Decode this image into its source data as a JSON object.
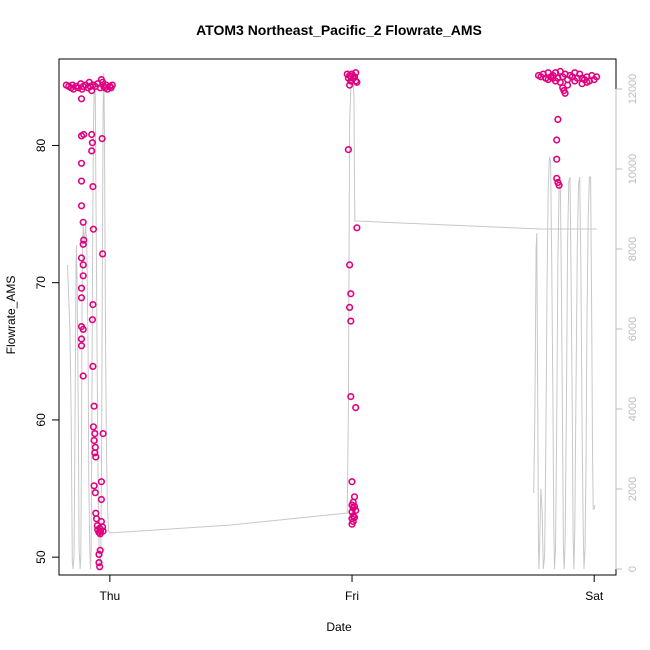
{
  "chart_data": {
    "type": "scatter",
    "title": "ATOM3 Northeast_Pacific_2 Flowrate_AMS",
    "xlabel": "Date",
    "ylabel": "Flowrate_AMS",
    "x_ticks": [
      {
        "label": "Thu",
        "value": 0.0
      },
      {
        "label": "Fri",
        "value": 1.0
      },
      {
        "label": "Sat",
        "value": 2.0
      }
    ],
    "xlim": [
      -0.21,
      2.09
    ],
    "ylim": [
      48.7,
      86.3
    ],
    "y_ticks": [
      50,
      60,
      70,
      80
    ],
    "y2lim": [
      -150,
      12750
    ],
    "y2_ticks": [
      0,
      2000,
      4000,
      6000,
      8000,
      10000,
      12000
    ],
    "colors": {
      "points": "#e0007f",
      "line": "#c8c8c8",
      "axis": "#000000",
      "right_axis": "#bdbdbd"
    },
    "grid": false,
    "series": [
      {
        "kind": "points",
        "axis": "left",
        "points": [
          [
            -0.18,
            84.4
          ],
          [
            -0.17,
            84.3
          ],
          [
            -0.16,
            84.2
          ],
          [
            -0.155,
            84.4
          ],
          [
            -0.15,
            84.1
          ],
          [
            -0.14,
            84.3
          ],
          [
            -0.13,
            84.2
          ],
          [
            -0.12,
            84.5
          ],
          [
            -0.115,
            84.1
          ],
          [
            -0.11,
            84.3
          ],
          [
            -0.1,
            84.4
          ],
          [
            -0.09,
            84.2
          ],
          [
            -0.085,
            84.6
          ],
          [
            -0.08,
            84.3
          ],
          [
            -0.075,
            84.0
          ],
          [
            -0.07,
            84.4
          ],
          [
            -0.06,
            84.3
          ],
          [
            -0.05,
            84.5
          ],
          [
            -0.04,
            84.2
          ],
          [
            -0.03,
            84.6
          ],
          [
            -0.025,
            84.3
          ],
          [
            -0.02,
            84.2
          ],
          [
            -0.015,
            84.4
          ],
          [
            -0.01,
            84.1
          ],
          [
            0.0,
            84.3
          ],
          [
            0.005,
            84.2
          ],
          [
            0.01,
            84.4
          ],
          [
            -0.035,
            84.8
          ],
          [
            -0.117,
            83.4
          ],
          [
            -0.117,
            80.7
          ],
          [
            -0.108,
            80.8
          ],
          [
            -0.117,
            78.7
          ],
          [
            -0.117,
            77.4
          ],
          [
            -0.117,
            75.6
          ],
          [
            -0.11,
            74.4
          ],
          [
            -0.108,
            73.1
          ],
          [
            -0.11,
            72.8
          ],
          [
            -0.117,
            71.8
          ],
          [
            -0.11,
            71.3
          ],
          [
            -0.11,
            70.5
          ],
          [
            -0.117,
            69.6
          ],
          [
            -0.117,
            68.9
          ],
          [
            -0.117,
            66.8
          ],
          [
            -0.11,
            66.6
          ],
          [
            -0.117,
            65.9
          ],
          [
            -0.117,
            65.4
          ],
          [
            -0.11,
            63.2
          ],
          [
            -0.075,
            80.8
          ],
          [
            -0.072,
            80.2
          ],
          [
            -0.075,
            79.6
          ],
          [
            -0.07,
            77.0
          ],
          [
            -0.068,
            73.9
          ],
          [
            -0.07,
            68.4
          ],
          [
            -0.072,
            67.3
          ],
          [
            -0.07,
            63.9
          ],
          [
            -0.065,
            61.0
          ],
          [
            -0.068,
            59.5
          ],
          [
            -0.062,
            59.0
          ],
          [
            -0.065,
            58.5
          ],
          [
            -0.06,
            58.0
          ],
          [
            -0.062,
            57.6
          ],
          [
            -0.058,
            57.3
          ],
          [
            -0.065,
            55.2
          ],
          [
            -0.06,
            54.7
          ],
          [
            -0.058,
            53.2
          ],
          [
            -0.055,
            52.8
          ],
          [
            -0.052,
            52.3
          ],
          [
            -0.05,
            52.0
          ],
          [
            -0.045,
            51.8
          ],
          [
            -0.042,
            52.1
          ],
          [
            -0.04,
            51.7
          ],
          [
            -0.038,
            51.9
          ],
          [
            -0.035,
            52.6
          ],
          [
            -0.035,
            55.5
          ],
          [
            -0.03,
            52.2
          ],
          [
            -0.028,
            51.9
          ],
          [
            -0.04,
            50.5
          ],
          [
            -0.045,
            50.2
          ],
          [
            -0.045,
            49.6
          ],
          [
            -0.042,
            49.3
          ],
          [
            -0.035,
            54.2
          ],
          [
            -0.028,
            59.0
          ],
          [
            -0.03,
            72.1
          ],
          [
            -0.032,
            80.5
          ],
          [
            0.98,
            85.2
          ],
          [
            0.985,
            84.9
          ],
          [
            0.99,
            85.1
          ],
          [
            0.995,
            84.7
          ],
          [
            1.0,
            85.2
          ],
          [
            1.005,
            84.9
          ],
          [
            1.01,
            85.0
          ],
          [
            1.015,
            84.7
          ],
          [
            1.02,
            84.6
          ],
          [
            1.015,
            85.3
          ],
          [
            0.99,
            84.4
          ],
          [
            0.995,
            85.0
          ],
          [
            0.985,
            79.7
          ],
          [
            1.02,
            74.0
          ],
          [
            0.99,
            71.3
          ],
          [
            0.995,
            69.2
          ],
          [
            0.99,
            68.2
          ],
          [
            0.995,
            67.2
          ],
          [
            0.995,
            61.7
          ],
          [
            1.015,
            60.9
          ],
          [
            1.0,
            55.5
          ],
          [
            1.01,
            54.4
          ],
          [
            1.005,
            54.0
          ],
          [
            1.0,
            53.8
          ],
          [
            1.005,
            53.6
          ],
          [
            1.0,
            53.3
          ],
          [
            1.005,
            53.0
          ],
          [
            1.0,
            52.8
          ],
          [
            1.005,
            52.6
          ],
          [
            1.0,
            52.4
          ],
          [
            1.01,
            52.9
          ],
          [
            1.015,
            53.4
          ],
          [
            1.01,
            53.7
          ],
          [
            1.77,
            85.1
          ],
          [
            1.78,
            85.0
          ],
          [
            1.79,
            85.2
          ],
          [
            1.8,
            84.9
          ],
          [
            1.81,
            85.3
          ],
          [
            1.82,
            85.0
          ],
          [
            1.83,
            85.1
          ],
          [
            1.84,
            85.3
          ],
          [
            1.85,
            84.9
          ],
          [
            1.86,
            85.4
          ],
          [
            1.87,
            85.0
          ],
          [
            1.88,
            85.2
          ],
          [
            1.89,
            84.8
          ],
          [
            1.9,
            85.1
          ],
          [
            1.91,
            85.0
          ],
          [
            1.92,
            85.3
          ],
          [
            1.93,
            84.9
          ],
          [
            1.94,
            85.2
          ],
          [
            1.95,
            84.9
          ],
          [
            1.96,
            84.8
          ],
          [
            1.97,
            85.0
          ],
          [
            1.98,
            84.7
          ],
          [
            1.99,
            85.1
          ],
          [
            2.0,
            84.8
          ],
          [
            2.01,
            85.0
          ],
          [
            1.86,
            84.6
          ],
          [
            1.87,
            84.2
          ],
          [
            1.875,
            84.0
          ],
          [
            1.88,
            83.8
          ],
          [
            1.89,
            84.4
          ],
          [
            1.81,
            84.8
          ],
          [
            1.83,
            84.9
          ],
          [
            1.84,
            84.7
          ],
          [
            1.92,
            84.7
          ],
          [
            1.95,
            84.5
          ],
          [
            1.97,
            84.6
          ],
          [
            1.8,
            84.9
          ],
          [
            1.85,
            81.9
          ],
          [
            1.845,
            80.4
          ],
          [
            1.845,
            79.0
          ],
          [
            1.845,
            77.6
          ],
          [
            1.85,
            77.3
          ],
          [
            1.855,
            77.1
          ]
        ]
      },
      {
        "kind": "line",
        "axis": "right",
        "points": [
          [
            -0.175,
            7600
          ],
          [
            -0.17,
            6800
          ],
          [
            -0.165,
            6000
          ],
          [
            -0.16,
            4000
          ],
          [
            -0.155,
            200
          ],
          [
            -0.152,
            0
          ],
          [
            -0.148,
            300
          ],
          [
            -0.145,
            2500
          ],
          [
            -0.142,
            5500
          ],
          [
            -0.14,
            7600
          ],
          [
            -0.138,
            8100
          ],
          [
            -0.135,
            7000
          ],
          [
            -0.13,
            3500
          ],
          [
            -0.127,
            500
          ],
          [
            -0.123,
            0
          ],
          [
            -0.12,
            300
          ],
          [
            -0.117,
            2800
          ],
          [
            -0.115,
            6500
          ],
          [
            -0.112,
            8200
          ],
          [
            -0.11,
            8600
          ],
          [
            -0.108,
            8300
          ],
          [
            -0.105,
            8200
          ],
          [
            -0.1,
            8600
          ],
          [
            -0.095,
            8100
          ],
          [
            -0.09,
            5400
          ],
          [
            -0.087,
            2200
          ],
          [
            -0.083,
            500
          ],
          [
            -0.08,
            0
          ],
          [
            -0.077,
            500
          ],
          [
            -0.075,
            3000
          ],
          [
            -0.072,
            6800
          ],
          [
            -0.07,
            9200
          ],
          [
            -0.067,
            11200
          ],
          [
            -0.064,
            12200
          ],
          [
            -0.06,
            11800
          ],
          [
            -0.058,
            9800
          ],
          [
            -0.055,
            7400
          ],
          [
            -0.05,
            3200
          ],
          [
            -0.047,
            1200
          ],
          [
            -0.043,
            200
          ],
          [
            -0.04,
            0
          ],
          [
            -0.037,
            500
          ],
          [
            -0.034,
            3000
          ],
          [
            -0.031,
            7200
          ],
          [
            -0.028,
            11500
          ],
          [
            -0.025,
            12400
          ],
          [
            -0.022,
            10800
          ],
          [
            -0.02,
            8200
          ],
          [
            -0.017,
            5200
          ],
          [
            -0.014,
            3000
          ],
          [
            -0.011,
            1800
          ],
          [
            -0.008,
            1300
          ],
          [
            -0.005,
            950
          ],
          [
            0.0,
            900
          ],
          [
            0.5,
            1100
          ],
          [
            0.98,
            1400
          ],
          [
            0.985,
            4000
          ],
          [
            0.988,
            8200
          ],
          [
            0.99,
            11200
          ],
          [
            0.995,
            12000
          ],
          [
            1.0,
            12400
          ],
          [
            1.005,
            12200
          ],
          [
            1.008,
            11800
          ],
          [
            1.01,
            9500
          ],
          [
            1.012,
            8700
          ],
          [
            1.018,
            8700
          ],
          [
            1.78,
            8500
          ],
          [
            2.01,
            8500
          ]
        ]
      },
      {
        "kind": "line",
        "axis": "right",
        "points": [
          [
            1.75,
            1900
          ],
          [
            1.755,
            4000
          ],
          [
            1.76,
            8000
          ],
          [
            1.763,
            8400
          ],
          [
            1.765,
            6000
          ],
          [
            1.768,
            3000
          ],
          [
            1.77,
            500
          ],
          [
            1.772,
            0
          ],
          [
            1.776,
            1000
          ],
          [
            1.78,
            2000
          ],
          [
            1.785,
            1500
          ],
          [
            1.79,
            0
          ],
          [
            1.795,
            300
          ],
          [
            1.8,
            3000
          ],
          [
            1.805,
            7000
          ],
          [
            1.81,
            9500
          ],
          [
            1.815,
            10300
          ],
          [
            1.82,
            10200
          ],
          [
            1.825,
            7500
          ],
          [
            1.83,
            4000
          ],
          [
            1.833,
            1000
          ],
          [
            1.836,
            0
          ],
          [
            1.84,
            500
          ],
          [
            1.845,
            3500
          ],
          [
            1.85,
            7800
          ],
          [
            1.855,
            9500
          ],
          [
            1.86,
            9800
          ],
          [
            1.865,
            6800
          ],
          [
            1.87,
            3000
          ],
          [
            1.873,
            500
          ],
          [
            1.876,
            0
          ],
          [
            1.88,
            700
          ],
          [
            1.885,
            4000
          ],
          [
            1.89,
            8200
          ],
          [
            1.895,
            9700
          ],
          [
            1.9,
            9800
          ],
          [
            1.905,
            7000
          ],
          [
            1.91,
            3500
          ],
          [
            1.913,
            800
          ],
          [
            1.916,
            0
          ],
          [
            1.92,
            1000
          ],
          [
            1.925,
            4500
          ],
          [
            1.93,
            8000
          ],
          [
            1.935,
            9600
          ],
          [
            1.94,
            9800
          ],
          [
            1.945,
            7500
          ],
          [
            1.95,
            3500
          ],
          [
            1.955,
            800
          ],
          [
            1.958,
            0
          ],
          [
            1.962,
            500
          ],
          [
            1.966,
            2500
          ],
          [
            1.97,
            6000
          ],
          [
            1.975,
            8800
          ],
          [
            1.98,
            9800
          ],
          [
            1.985,
            9800
          ],
          [
            1.99,
            6000
          ],
          [
            1.993,
            3000
          ],
          [
            1.996,
            1500
          ],
          [
            2.0,
            1500
          ],
          [
            2.003,
            1600
          ]
        ]
      }
    ]
  }
}
